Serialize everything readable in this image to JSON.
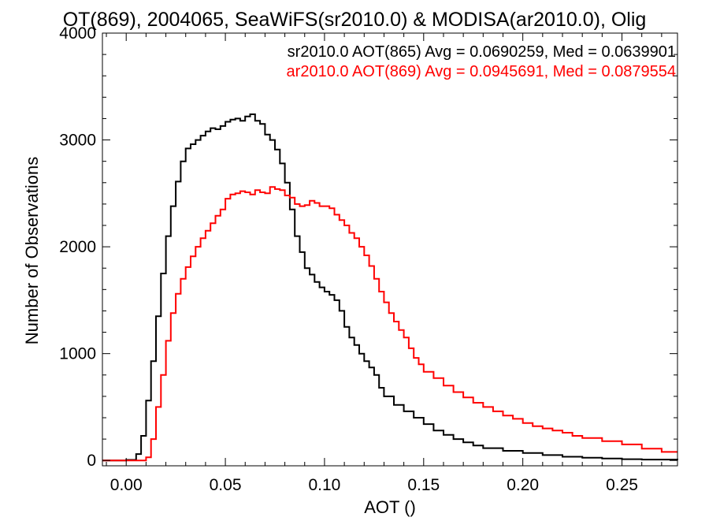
{
  "chart_data": {
    "type": "line",
    "title": "OT(869), 2004065, SeaWiFS(sr2010.0) & MODISA(ar2010.0), Olig",
    "xlabel": "AOT ()",
    "ylabel": "Number of Observations",
    "xlim": [
      -0.012,
      0.278
    ],
    "ylim": [
      -50,
      4000
    ],
    "x_ticks": [
      0.0,
      0.05,
      0.1,
      0.15,
      0.2,
      0.25
    ],
    "x_tick_labels": [
      "0.00",
      "0.05",
      "0.10",
      "0.15",
      "0.20",
      "0.25"
    ],
    "y_ticks": [
      0,
      1000,
      2000,
      3000,
      4000
    ],
    "y_tick_labels": [
      "0",
      "1000",
      "2000",
      "3000",
      "4000"
    ],
    "step_style": "histogram",
    "grid": false,
    "legend_placement": "top-right",
    "series": [
      {
        "name": "sr2010.0 AOT(865) Avg = 0.0690259, Med = 0.0639901",
        "color": "#000000",
        "x": [
          -0.012,
          0.0,
          0.005,
          0.0075,
          0.01,
          0.0125,
          0.015,
          0.0175,
          0.02,
          0.0225,
          0.025,
          0.0275,
          0.03,
          0.0325,
          0.035,
          0.0375,
          0.04,
          0.0425,
          0.045,
          0.0475,
          0.05,
          0.0525,
          0.055,
          0.0575,
          0.06,
          0.0625,
          0.065,
          0.0675,
          0.07,
          0.0725,
          0.075,
          0.0775,
          0.08,
          0.0825,
          0.085,
          0.0875,
          0.09,
          0.0925,
          0.095,
          0.0975,
          0.1,
          0.1025,
          0.105,
          0.1075,
          0.11,
          0.1125,
          0.115,
          0.1175,
          0.12,
          0.1225,
          0.125,
          0.1275,
          0.13,
          0.135,
          0.14,
          0.145,
          0.15,
          0.155,
          0.16,
          0.165,
          0.17,
          0.175,
          0.18,
          0.19,
          0.2,
          0.21,
          0.22,
          0.23,
          0.24,
          0.25,
          0.26,
          0.278
        ],
        "values": [
          0,
          5,
          60,
          230,
          560,
          930,
          1350,
          1750,
          2100,
          2380,
          2610,
          2800,
          2920,
          2960,
          3000,
          3040,
          3080,
          3110,
          3100,
          3130,
          3170,
          3190,
          3200,
          3180,
          3220,
          3240,
          3180,
          3150,
          3050,
          3000,
          2910,
          2780,
          2600,
          2350,
          2100,
          1950,
          1800,
          1740,
          1670,
          1620,
          1580,
          1550,
          1500,
          1400,
          1250,
          1150,
          1080,
          1000,
          930,
          870,
          800,
          680,
          600,
          520,
          460,
          400,
          340,
          280,
          240,
          200,
          170,
          140,
          115,
          90,
          70,
          50,
          35,
          25,
          18,
          12,
          8,
          5
        ]
      },
      {
        "name": "ar2010.0 AOT(869) Avg = 0.0945691, Med = 0.0879554",
        "color": "#ff0000",
        "x": [
          -0.012,
          0.0,
          0.01,
          0.0125,
          0.015,
          0.0175,
          0.02,
          0.0225,
          0.025,
          0.0275,
          0.03,
          0.0325,
          0.035,
          0.0375,
          0.04,
          0.0425,
          0.045,
          0.0475,
          0.05,
          0.0525,
          0.055,
          0.0575,
          0.06,
          0.0625,
          0.065,
          0.0675,
          0.07,
          0.0725,
          0.075,
          0.0775,
          0.08,
          0.0825,
          0.085,
          0.0875,
          0.09,
          0.0925,
          0.095,
          0.0975,
          0.1,
          0.1025,
          0.105,
          0.1075,
          0.11,
          0.1125,
          0.115,
          0.1175,
          0.12,
          0.1225,
          0.125,
          0.1275,
          0.13,
          0.1325,
          0.135,
          0.1375,
          0.14,
          0.1425,
          0.145,
          0.1475,
          0.15,
          0.155,
          0.16,
          0.165,
          0.17,
          0.175,
          0.18,
          0.185,
          0.19,
          0.195,
          0.2,
          0.205,
          0.21,
          0.215,
          0.22,
          0.225,
          0.23,
          0.24,
          0.25,
          0.26,
          0.27
        ],
        "values": [
          0,
          0,
          30,
          200,
          500,
          800,
          1120,
          1380,
          1560,
          1700,
          1810,
          1910,
          2000,
          2080,
          2150,
          2220,
          2290,
          2350,
          2450,
          2490,
          2500,
          2520,
          2510,
          2490,
          2530,
          2510,
          2500,
          2560,
          2540,
          2530,
          2480,
          2460,
          2400,
          2380,
          2390,
          2430,
          2410,
          2380,
          2380,
          2360,
          2300,
          2250,
          2200,
          2130,
          2080,
          2000,
          1920,
          1820,
          1700,
          1580,
          1480,
          1380,
          1300,
          1220,
          1150,
          1050,
          960,
          900,
          830,
          770,
          700,
          640,
          590,
          540,
          500,
          460,
          420,
          390,
          350,
          320,
          300,
          280,
          260,
          230,
          210,
          180,
          150,
          110,
          80
        ]
      }
    ]
  }
}
